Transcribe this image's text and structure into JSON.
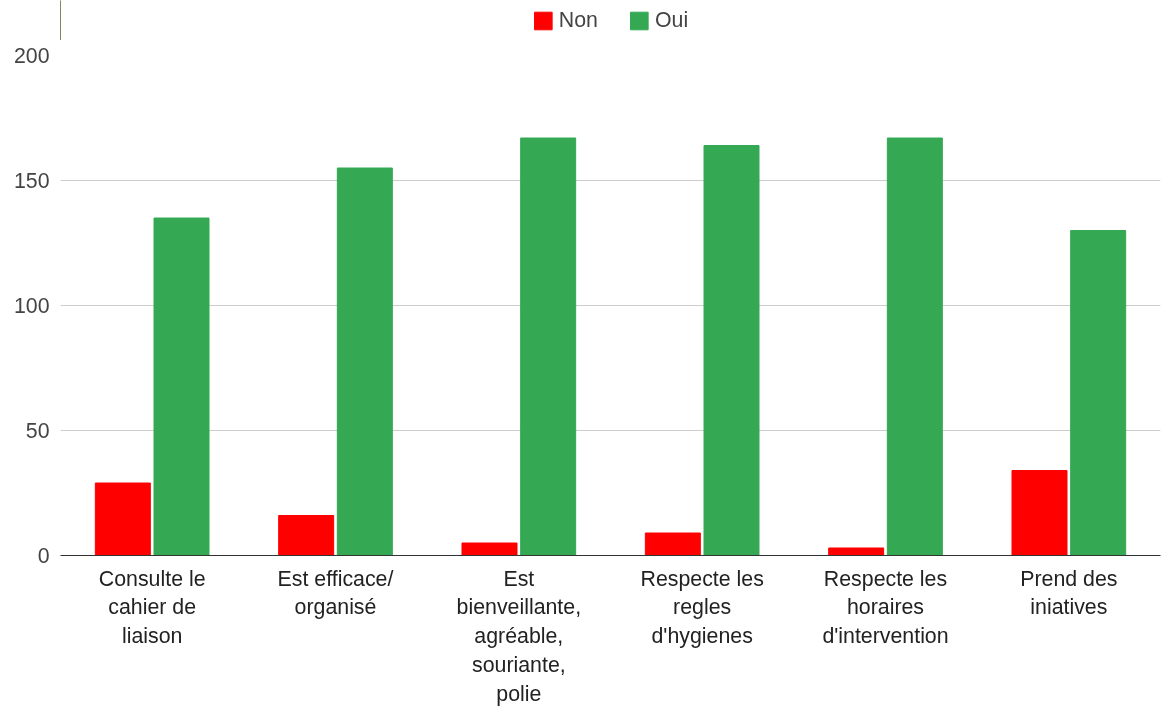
{
  "chart_data": {
    "type": "bar",
    "categories": [
      "Consulte le cahier de liaison",
      "Est efficace/ organisé",
      "Est bienveillante, agréable, souriante, polie",
      "Respecte les regles d'hygienes",
      "Respecte les horaires d'intervention",
      "Prend des iniatives"
    ],
    "series": [
      {
        "name": "Non",
        "color": "#ff0000",
        "values": [
          29,
          16,
          5,
          9,
          3,
          34
        ]
      },
      {
        "name": "Oui",
        "color": "#34a853",
        "values": [
          135,
          155,
          167,
          164,
          167,
          130
        ]
      }
    ],
    "ylim": [
      0,
      200
    ],
    "yticks": [
      0,
      50,
      100,
      150,
      200
    ],
    "grid": "y",
    "legend": "top"
  }
}
